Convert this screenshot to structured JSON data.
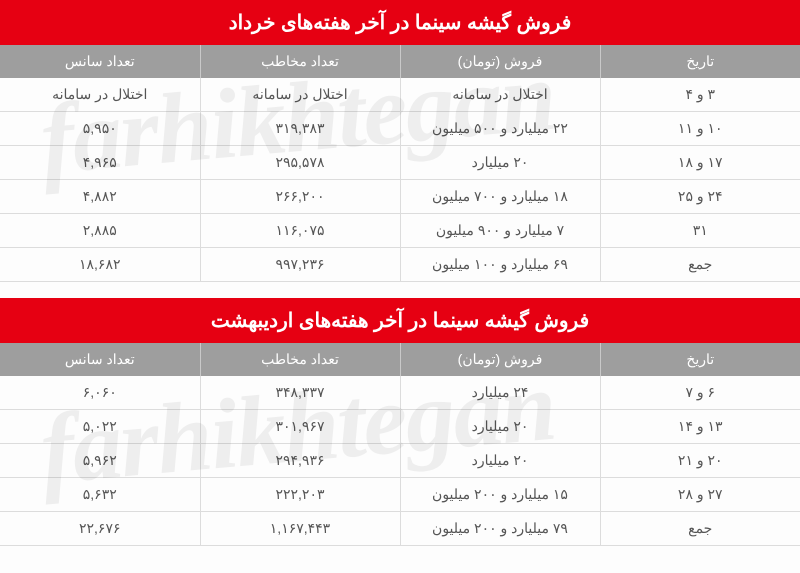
{
  "watermark": "farhikhtegan",
  "colors": {
    "title_bg": "#e60012",
    "title_fg": "#ffffff",
    "header_bg": "#9e9e9e",
    "header_fg": "#ffffff",
    "cell_fg": "#555555",
    "border": "#dcdcdc",
    "page_bg": "#fdfdfd"
  },
  "tables": [
    {
      "title": "فروش گیشه سینما در آخر هفته‌های خرداد",
      "columns": [
        "تاریخ",
        "فروش (تومان)",
        "تعداد مخاطب",
        "تعداد سانس"
      ],
      "rows": [
        [
          "۳ و ۴",
          "اختلال در سامانه",
          "اختلال در سامانه",
          "اختلال در سامانه"
        ],
        [
          "۱۰ و ۱۱",
          "۲۲ میلیارد و ۵۰۰ میلیون",
          "۳۱۹,۳۸۳",
          "۵,۹۵۰"
        ],
        [
          "۱۷ و ۱۸",
          "۲۰ میلیارد",
          "۲۹۵,۵۷۸",
          "۴,۹۶۵"
        ],
        [
          "۲۴ و ۲۵",
          "۱۸ میلیارد و ۷۰۰ میلیون",
          "۲۶۶,۲۰۰",
          "۴,۸۸۲"
        ],
        [
          "۳۱",
          "۷ میلیارد و ۹۰۰ میلیون",
          "۱۱۶,۰۷۵",
          "۲,۸۸۵"
        ],
        [
          "جمع",
          "۶۹ میلیارد و ۱۰۰ میلیون",
          "۹۹۷,۲۳۶",
          "۱۸,۶۸۲"
        ]
      ]
    },
    {
      "title": "فروش گیشه سینما در آخر هفته‌های اردیبهشت",
      "columns": [
        "تاریخ",
        "فروش (تومان)",
        "تعداد مخاطب",
        "تعداد سانس"
      ],
      "rows": [
        [
          "۶ و ۷",
          "۲۴ میلیارد",
          "۳۴۸,۳۳۷",
          "۶,۰۶۰"
        ],
        [
          "۱۳ و ۱۴",
          "۲۰ میلیارد",
          "۳۰۱,۹۶۷",
          "۵,۰۲۲"
        ],
        [
          "۲۰ و ۲۱",
          "۲۰ میلیارد",
          "۲۹۴,۹۳۶",
          "۵,۹۶۲"
        ],
        [
          "۲۷ و ۲۸",
          "۱۵ میلیارد و ۲۰۰ میلیون",
          "۲۲۲,۲۰۳",
          "۵,۶۳۲"
        ],
        [
          "جمع",
          "۷۹ میلیارد و ۲۰۰ میلیون",
          "۱,۱۶۷,۴۴۳",
          "۲۲,۶۷۶"
        ]
      ]
    }
  ]
}
